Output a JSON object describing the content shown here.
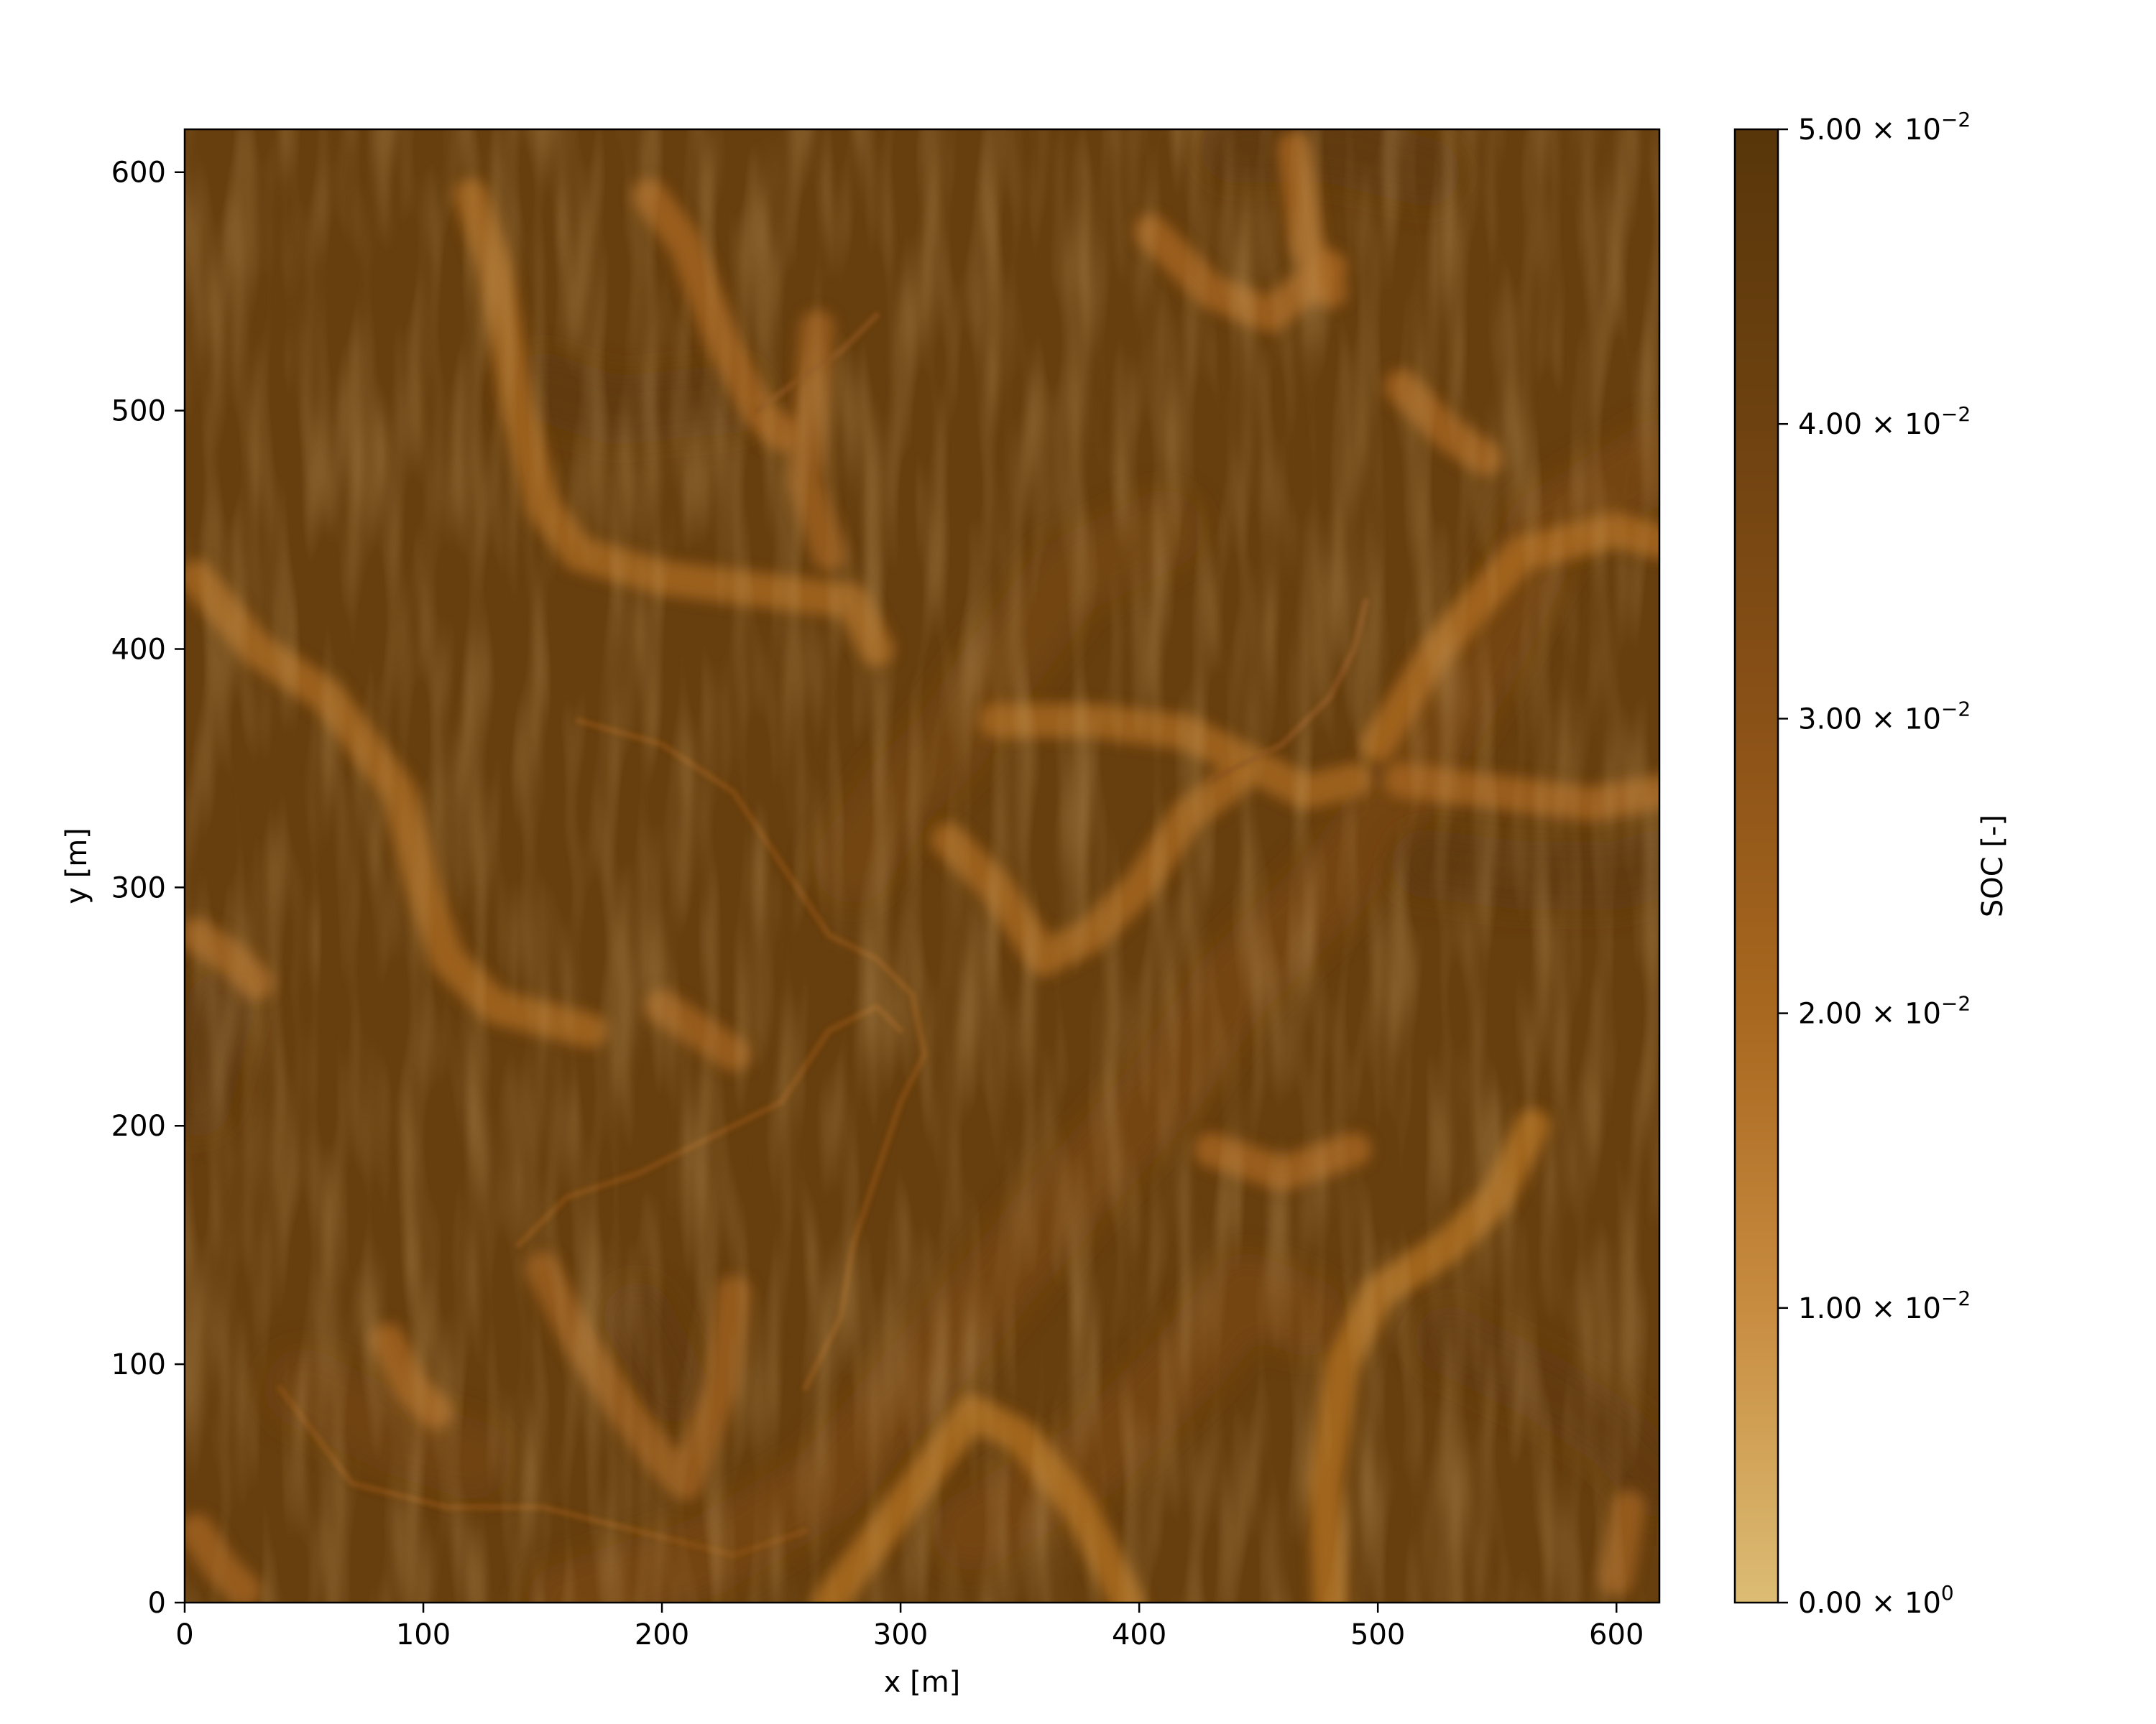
{
  "chart_data": {
    "type": "heatmap",
    "title": "",
    "xlabel": "x [m]",
    "ylabel": "y [m]",
    "xlim": [
      0,
      618
    ],
    "ylim": [
      0,
      618
    ],
    "x_ticks": [
      {
        "value": 0,
        "label": "0"
      },
      {
        "value": 100,
        "label": "100"
      },
      {
        "value": 200,
        "label": "200"
      },
      {
        "value": 300,
        "label": "300"
      },
      {
        "value": 400,
        "label": "400"
      },
      {
        "value": 500,
        "label": "500"
      },
      {
        "value": 600,
        "label": "600"
      }
    ],
    "y_ticks": [
      {
        "value": 0,
        "label": "0"
      },
      {
        "value": 100,
        "label": "100"
      },
      {
        "value": 200,
        "label": "200"
      },
      {
        "value": 300,
        "label": "300"
      },
      {
        "value": 400,
        "label": "400"
      },
      {
        "value": 500,
        "label": "500"
      },
      {
        "value": 600,
        "label": "600"
      }
    ],
    "colorbar": {
      "label": "SOC [-]",
      "range": [
        0,
        0.05
      ],
      "ticks": [
        {
          "value": 0.0,
          "mantissa": "0.00",
          "exponent": "0"
        },
        {
          "value": 0.01,
          "mantissa": "1.00",
          "exponent": "−2"
        },
        {
          "value": 0.02,
          "mantissa": "2.00",
          "exponent": "−2"
        },
        {
          "value": 0.03,
          "mantissa": "3.00",
          "exponent": "−2"
        },
        {
          "value": 0.04,
          "mantissa": "4.00",
          "exponent": "−2"
        },
        {
          "value": 0.05,
          "mantissa": "5.00",
          "exponent": "−2"
        }
      ],
      "colors": [
        "#dcbc74",
        "#c88c40",
        "#a8681f",
        "#8a5117",
        "#6e4210",
        "#58360a"
      ]
    },
    "field_background_soc": 0.043,
    "ridges": [
      {
        "soc": 0.021,
        "points": [
          [
            5,
            430
          ],
          [
            30,
            400
          ],
          [
            60,
            380
          ],
          [
            90,
            340
          ],
          [
            100,
            300
          ],
          [
            110,
            270
          ],
          [
            130,
            250
          ],
          [
            170,
            240
          ]
        ]
      },
      {
        "soc": 0.021,
        "points": [
          [
            120,
            590
          ],
          [
            130,
            560
          ],
          [
            140,
            500
          ],
          [
            150,
            460
          ],
          [
            165,
            440
          ],
          [
            200,
            430
          ],
          [
            240,
            425
          ],
          [
            280,
            420
          ],
          [
            290,
            400
          ]
        ]
      },
      {
        "soc": 0.022,
        "points": [
          [
            195,
            590
          ],
          [
            210,
            570
          ],
          [
            225,
            530
          ],
          [
            240,
            500
          ],
          [
            250,
            490
          ]
        ]
      },
      {
        "soc": 0.024,
        "points": [
          [
            265,
            535
          ],
          [
            260,
            470
          ],
          [
            270,
            440
          ]
        ]
      },
      {
        "soc": 0.022,
        "points": [
          [
            405,
            575
          ],
          [
            430,
            550
          ],
          [
            455,
            540
          ],
          [
            480,
            560
          ]
        ]
      },
      {
        "soc": 0.022,
        "points": [
          [
            465,
            610
          ],
          [
            470,
            570
          ],
          [
            480,
            550
          ]
        ]
      },
      {
        "soc": 0.022,
        "points": [
          [
            510,
            510
          ],
          [
            530,
            490
          ],
          [
            545,
            480
          ]
        ]
      },
      {
        "soc": 0.021,
        "points": [
          [
            340,
            370
          ],
          [
            380,
            370
          ],
          [
            420,
            365
          ],
          [
            450,
            350
          ],
          [
            470,
            340
          ],
          [
            490,
            345
          ]
        ]
      },
      {
        "soc": 0.02,
        "points": [
          [
            500,
            360
          ],
          [
            525,
            400
          ],
          [
            560,
            440
          ],
          [
            600,
            450
          ],
          [
            618,
            445
          ]
        ]
      },
      {
        "soc": 0.022,
        "points": [
          [
            510,
            345
          ],
          [
            550,
            340
          ],
          [
            590,
            335
          ],
          [
            618,
            340
          ]
        ]
      },
      {
        "soc": 0.021,
        "points": [
          [
            320,
            320
          ],
          [
            340,
            300
          ],
          [
            360,
            270
          ],
          [
            380,
            280
          ],
          [
            400,
            300
          ],
          [
            420,
            330
          ],
          [
            440,
            345
          ]
        ]
      },
      {
        "soc": 0.023,
        "points": [
          [
            200,
            250
          ],
          [
            215,
            240
          ],
          [
            230,
            230
          ]
        ]
      },
      {
        "soc": 0.022,
        "points": [
          [
            430,
            190
          ],
          [
            460,
            180
          ],
          [
            490,
            190
          ]
        ]
      },
      {
        "soc": 0.019,
        "points": [
          [
            270,
            0
          ],
          [
            300,
            40
          ],
          [
            330,
            80
          ],
          [
            350,
            70
          ],
          [
            375,
            40
          ],
          [
            395,
            0
          ]
        ]
      },
      {
        "soc": 0.019,
        "points": [
          [
            480,
            0
          ],
          [
            478,
            50
          ],
          [
            485,
            100
          ],
          [
            500,
            130
          ],
          [
            530,
            150
          ],
          [
            550,
            170
          ],
          [
            565,
            200
          ]
        ]
      },
      {
        "soc": 0.024,
        "points": [
          [
            150,
            140
          ],
          [
            165,
            110
          ],
          [
            185,
            80
          ],
          [
            200,
            60
          ],
          [
            210,
            50
          ],
          [
            225,
            90
          ],
          [
            230,
            130
          ]
        ]
      },
      {
        "soc": 0.023,
        "points": [
          [
            5,
            280
          ],
          [
            20,
            270
          ],
          [
            30,
            260
          ]
        ]
      },
      {
        "soc": 0.023,
        "points": [
          [
            5,
            30
          ],
          [
            15,
            15
          ],
          [
            25,
            5
          ]
        ]
      },
      {
        "soc": 0.022,
        "points": [
          [
            85,
            110
          ],
          [
            95,
            90
          ],
          [
            105,
            80
          ]
        ]
      },
      {
        "soc": 0.024,
        "points": [
          [
            600,
            10
          ],
          [
            605,
            40
          ]
        ]
      }
    ],
    "channels": [
      {
        "soc": 0.031,
        "points": [
          [
            165,
            370
          ],
          [
            200,
            360
          ],
          [
            230,
            340
          ],
          [
            250,
            310
          ],
          [
            270,
            280
          ],
          [
            290,
            270
          ],
          [
            305,
            255
          ],
          [
            310,
            230
          ],
          [
            300,
            210
          ],
          [
            290,
            180
          ],
          [
            280,
            150
          ],
          [
            275,
            120
          ],
          [
            260,
            90
          ]
        ]
      },
      {
        "soc": 0.031,
        "points": [
          [
            140,
            150
          ],
          [
            160,
            170
          ],
          [
            190,
            180
          ],
          [
            220,
            195
          ],
          [
            250,
            210
          ],
          [
            270,
            240
          ],
          [
            290,
            250
          ],
          [
            300,
            240
          ]
        ]
      },
      {
        "soc": 0.031,
        "points": [
          [
            40,
            90
          ],
          [
            70,
            50
          ],
          [
            110,
            40
          ],
          [
            150,
            40
          ],
          [
            190,
            30
          ],
          [
            230,
            20
          ],
          [
            260,
            30
          ]
        ]
      },
      {
        "soc": 0.03,
        "points": [
          [
            240,
            500
          ],
          [
            260,
            515
          ],
          [
            275,
            525
          ],
          [
            290,
            540
          ]
        ]
      },
      {
        "soc": 0.03,
        "points": [
          [
            430,
            345
          ],
          [
            460,
            360
          ],
          [
            480,
            380
          ],
          [
            490,
            400
          ],
          [
            495,
            420
          ]
        ]
      }
    ],
    "valleys": [
      {
        "soc": 0.047,
        "points": [
          [
            150,
            510
          ],
          [
            180,
            500
          ],
          [
            230,
            505
          ]
        ]
      },
      {
        "soc": 0.047,
        "points": [
          [
            440,
            610
          ],
          [
            480,
            610
          ],
          [
            520,
            600
          ]
        ]
      },
      {
        "soc": 0.047,
        "points": [
          [
            520,
            310
          ],
          [
            560,
            305
          ],
          [
            600,
            305
          ],
          [
            618,
            310
          ]
        ]
      },
      {
        "soc": 0.046,
        "points": [
          [
            530,
            110
          ],
          [
            570,
            90
          ],
          [
            600,
            70
          ],
          [
            618,
            50
          ]
        ]
      },
      {
        "soc": 0.047,
        "points": [
          [
            5,
            210
          ],
          [
            10,
            230
          ],
          [
            15,
            250
          ]
        ]
      },
      {
        "soc": 0.046,
        "points": [
          [
            190,
            120
          ],
          [
            205,
            90
          ]
        ]
      }
    ],
    "light_bands": [
      {
        "soc": 0.034,
        "points": [
          [
            160,
            0
          ],
          [
            220,
            20
          ],
          [
            270,
            50
          ],
          [
            320,
            110
          ],
          [
            370,
            170
          ],
          [
            410,
            215
          ],
          [
            440,
            260
          ],
          [
            480,
            300
          ],
          [
            510,
            340
          ],
          [
            540,
            390
          ],
          [
            570,
            450
          ],
          [
            618,
            480
          ]
        ]
      },
      {
        "soc": 0.034,
        "points": [
          [
            330,
            30
          ],
          [
            380,
            60
          ],
          [
            420,
            100
          ],
          [
            445,
            130
          ],
          [
            470,
            120
          ]
        ]
      },
      {
        "soc": 0.035,
        "points": [
          [
            280,
            310
          ],
          [
            300,
            340
          ],
          [
            320,
            360
          ],
          [
            340,
            390
          ],
          [
            370,
            430
          ],
          [
            410,
            450
          ]
        ]
      },
      {
        "soc": 0.036,
        "points": [
          [
            50,
            90
          ],
          [
            90,
            70
          ],
          [
            120,
            60
          ]
        ]
      }
    ]
  }
}
